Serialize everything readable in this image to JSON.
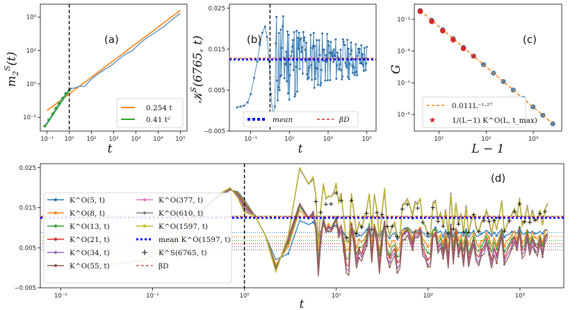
{
  "chart_data": [
    {
      "panel": "(a)",
      "type": "line",
      "xscale": "log",
      "yscale": "log",
      "xlim": [
        0.05,
        200000
      ],
      "ylim": [
        0.0015,
        60000
      ],
      "xlabel": "t",
      "ylabel": "m_2^S(t)",
      "xticks": [
        {
          "v": 0.1,
          "label": "10⁻¹"
        },
        {
          "v": 1,
          "label": "10⁰"
        },
        {
          "v": 10,
          "label": "10¹"
        },
        {
          "v": 100,
          "label": "10²"
        },
        {
          "v": 1000,
          "label": "10³"
        },
        {
          "v": 10000,
          "label": "10⁴"
        },
        {
          "v": 100000,
          "label": "10⁵"
        }
      ],
      "yticks": [
        {
          "v": 0.01,
          "label": "10⁻²"
        },
        {
          "v": 1,
          "label": "10⁰"
        },
        {
          "v": 100,
          "label": "10²"
        },
        {
          "v": 10000,
          "label": "10⁴"
        }
      ],
      "vline": 1,
      "data": {
        "name": "m2S",
        "color": "#5b8db8",
        "x": [
          0.08,
          0.12,
          0.18,
          0.25,
          0.35,
          0.5,
          0.7,
          1.0,
          1.4,
          2,
          3,
          5,
          8,
          12,
          20,
          40,
          80,
          150,
          300,
          700,
          1500,
          3000,
          8000,
          20000,
          50000,
          100000
        ],
        "y": [
          0.003,
          0.007,
          0.016,
          0.035,
          0.07,
          0.14,
          0.27,
          0.42,
          0.55,
          0.6,
          0.75,
          0.7,
          1.5,
          2.4,
          4,
          7.5,
          13,
          26,
          55,
          100,
          270,
          550,
          1300,
          3000,
          8500,
          17000
        ]
      },
      "fits": [
        {
          "label": "0.254 t",
          "color": "#ff7f0e",
          "a": 0.254,
          "p": 1
        },
        {
          "label": "0.41 t²",
          "color": "#2ca02c",
          "a": 0.41,
          "p": 2
        }
      ]
    },
    {
      "panel": "(b)",
      "type": "line",
      "xscale": "log",
      "xlim": [
        0.008,
        300000
      ],
      "ylim": [
        -0.005,
        0.026
      ],
      "xlabel": "t",
      "ylabel": "K^S(6765, t)",
      "xticks": [
        {
          "v": 0.1,
          "label": "10⁻¹"
        },
        {
          "v": 10,
          "label": "10¹"
        },
        {
          "v": 1000,
          "label": "10³"
        },
        {
          "v": 100000,
          "label": "10⁵"
        }
      ],
      "yticks": [
        {
          "v": -0.005,
          "label": "−0.005"
        },
        {
          "v": 0.005,
          "label": "0.005"
        },
        {
          "v": 0.015,
          "label": "0.015"
        },
        {
          "v": 0.025,
          "label": "0.025"
        }
      ],
      "vline": 1,
      "mean": 0.0125,
      "betaD": 0.0128,
      "legend": {
        "mean": "mean",
        "betaD": "βD"
      }
    },
    {
      "panel": "(c)",
      "type": "scatter",
      "xscale": "log",
      "yscale": "log",
      "xlim": [
        3,
        4000
      ],
      "ylim": [
        3e-07,
        0.003
      ],
      "xlabel": "L − 1",
      "ylabel": "G",
      "xticks": [
        {
          "v": 10,
          "label": "10¹"
        },
        {
          "v": 100,
          "label": "10²"
        },
        {
          "v": 1000,
          "label": "10³"
        }
      ],
      "yticks": [
        {
          "v": 1e-06,
          "label": "10⁻⁶"
        },
        {
          "v": 1e-05,
          "label": "10⁻⁵"
        },
        {
          "v": 0.0001,
          "label": "10⁻⁴"
        },
        {
          "v": 0.001,
          "label": "10⁻³"
        }
      ],
      "points_x": [
        4,
        7,
        12,
        20,
        33,
        54,
        88,
        143,
        232,
        376,
        609,
        986,
        1596,
        2583
      ],
      "fit_a": 0.011,
      "fit_p": -1.27,
      "stars_x": [
        4,
        7,
        12,
        20,
        33,
        54
      ],
      "legend": {
        "fit": "0.011L⁻¹·²⁷",
        "stars": "1/(L−1) K^O(L, t_max)"
      }
    },
    {
      "panel": "(d)",
      "type": "line",
      "xscale": "log",
      "xlim": [
        0.006,
        3000
      ],
      "ylim": [
        -0.005,
        0.026
      ],
      "xlabel": "t",
      "xticks": [
        {
          "v": 0.01,
          "label": "10⁻²"
        },
        {
          "v": 0.1,
          "label": "10⁻¹"
        },
        {
          "v": 1,
          "label": "10⁰"
        },
        {
          "v": 10,
          "label": "10¹"
        },
        {
          "v": 100,
          "label": "10²"
        },
        {
          "v": 1000,
          "label": "10³"
        }
      ],
      "yticks": [
        {
          "v": -0.005,
          "label": "−0.005"
        },
        {
          "v": 0.005,
          "label": "0.005"
        },
        {
          "v": 0.015,
          "label": "0.015"
        },
        {
          "v": 0.025,
          "label": "0.025"
        }
      ],
      "vline": 1,
      "series": [
        {
          "name": "K^O(5, t)",
          "color": "#1f77b4",
          "L": 5,
          "amp": 0.25,
          "final": 0.0088
        },
        {
          "name": "K^O(8, t)",
          "color": "#ff7f0e",
          "L": 8,
          "amp": 0.55,
          "final": 0.0078
        },
        {
          "name": "K^O(13, t)",
          "color": "#2ca02c",
          "L": 13,
          "amp": 0.7,
          "final": 0.0068
        },
        {
          "name": "K^O(21, t)",
          "color": "#d62728",
          "L": 21,
          "amp": 0.82,
          "final": 0.006
        },
        {
          "name": "K^O(34, t)",
          "color": "#9467bd",
          "L": 34,
          "amp": 0.9,
          "final": 0.0053
        },
        {
          "name": "K^O(55, t)",
          "color": "#8c564b",
          "L": 55,
          "amp": 0.95,
          "final": 0.0045
        },
        {
          "name": "K^O(377, t)",
          "color": "#e377c2",
          "L": 377,
          "amp": 0.98,
          "final": 0.013
        },
        {
          "name": "K^O(610, t)",
          "color": "#7f7f7f",
          "L": 610,
          "amp": 0.99,
          "final": 0.013
        },
        {
          "name": "K^O(1597, t)",
          "color": "#bcbd22",
          "L": 1597,
          "amp": 1.0,
          "final": 0.013
        }
      ],
      "legend": {
        "mean": "mean K^O(1597, t)",
        "cross": "K^S(6765, t)",
        "betaD": "βD"
      },
      "mean": 0.0125,
      "betaD": 0.0128
    }
  ],
  "labels": {
    "a": "(a)",
    "b": "(b)",
    "c": "(c)",
    "d": "(d)"
  }
}
